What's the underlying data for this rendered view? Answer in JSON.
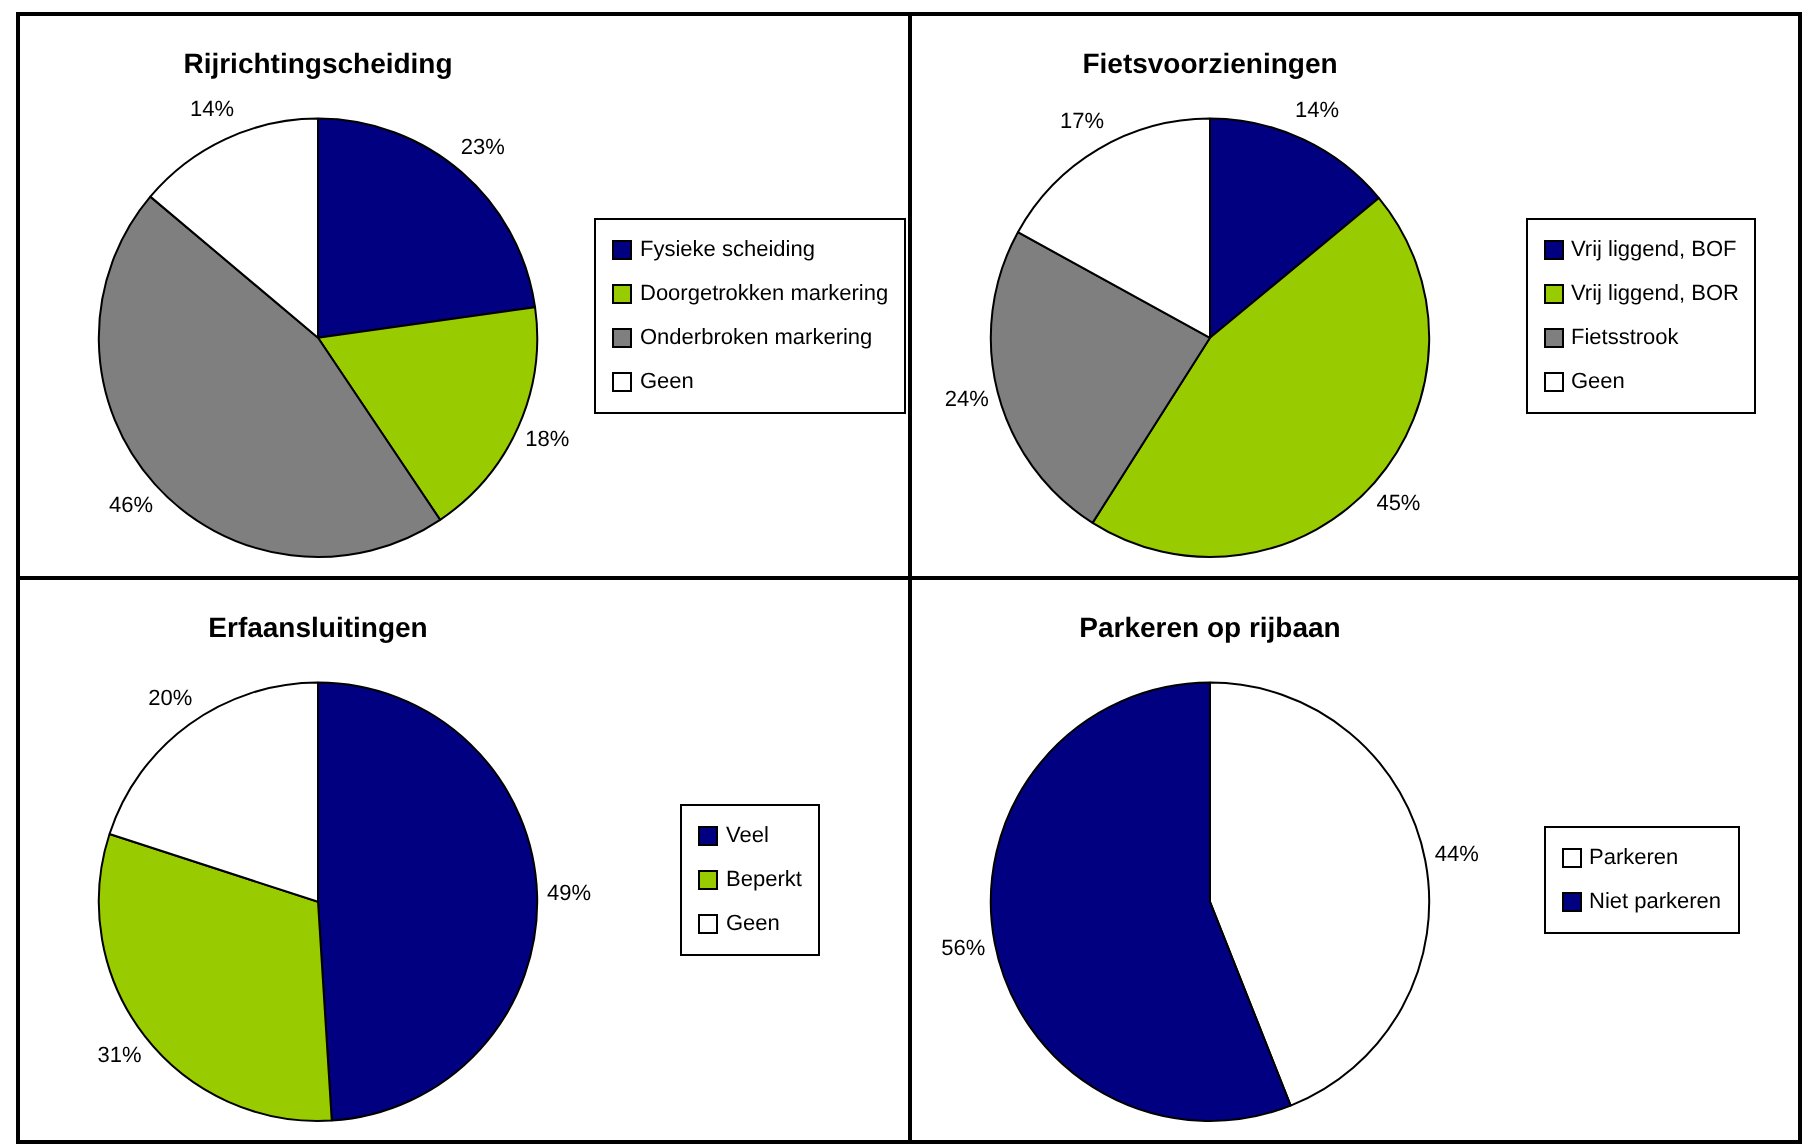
{
  "chart_data": [
    {
      "type": "pie",
      "title": "Rijrichtingscheiding",
      "categories": [
        "Fysieke scheiding",
        "Doorgetrokken markering",
        "Onderbroken markering",
        "Geen"
      ],
      "values": [
        23,
        18,
        46,
        14
      ],
      "value_labels": [
        "23%",
        "18%",
        "46%",
        "14%"
      ],
      "colors": [
        "#000080",
        "#99cc00",
        "#7f7f7f",
        "#ffffff"
      ],
      "legend": "right"
    },
    {
      "type": "pie",
      "title": "Fietsvoorzieningen",
      "categories": [
        "Vrij liggend, BOF",
        "Vrij liggend, BOR",
        "Fietsstrook",
        "Geen"
      ],
      "values": [
        14,
        45,
        24,
        17
      ],
      "value_labels": [
        "14%",
        "45%",
        "24%",
        "17%"
      ],
      "colors": [
        "#000080",
        "#99cc00",
        "#7f7f7f",
        "#ffffff"
      ],
      "legend": "right"
    },
    {
      "type": "pie",
      "title": "Erfaansluitingen",
      "categories": [
        "Veel",
        "Beperkt",
        "Geen"
      ],
      "values": [
        49,
        31,
        20
      ],
      "value_labels": [
        "49%",
        "31%",
        "20%"
      ],
      "colors": [
        "#000080",
        "#99cc00",
        "#ffffff"
      ],
      "legend": "right"
    },
    {
      "type": "pie",
      "title": "Parkeren op rijbaan",
      "categories": [
        "Parkeren",
        "Niet parkeren"
      ],
      "values": [
        44,
        56
      ],
      "value_labels": [
        "44%",
        "56%"
      ],
      "colors": [
        "#ffffff",
        "#000080"
      ],
      "legend": "right"
    }
  ]
}
